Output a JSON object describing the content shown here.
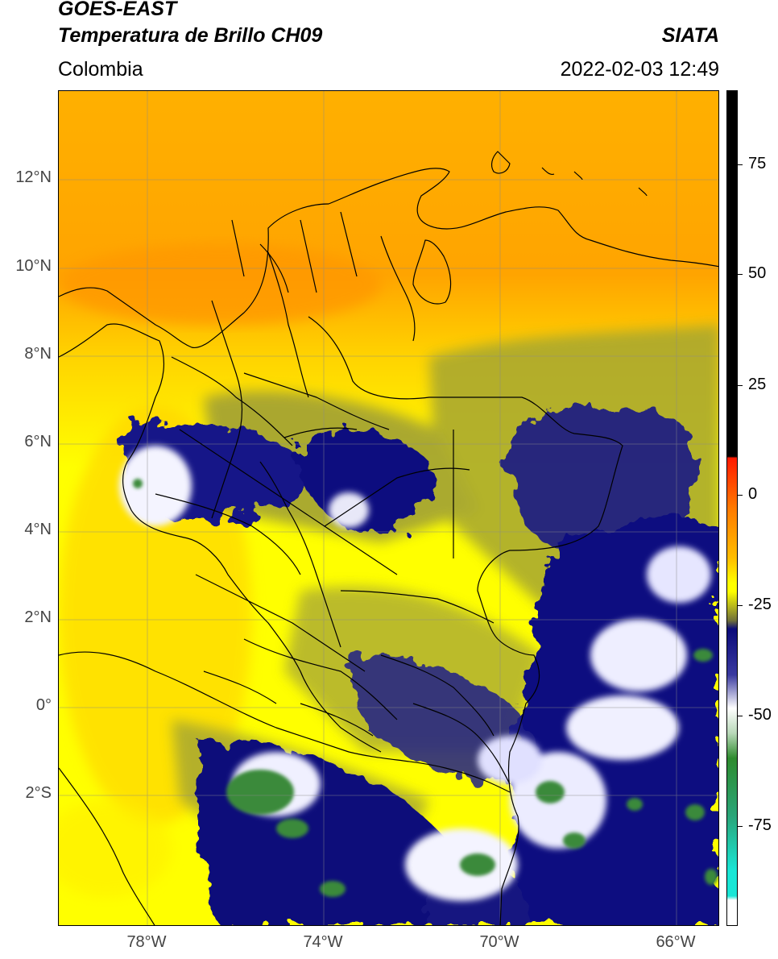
{
  "header": {
    "satellite": "GOES-EAST",
    "product": "Temperatura de Brillo CH09",
    "region": "Colombia",
    "agency": "SIATA",
    "timestamp": "2022-02-03 12:49"
  },
  "map": {
    "lat_labels": [
      "12°N",
      "10°N",
      "8°N",
      "6°N",
      "4°N",
      "2°N",
      "0°",
      "2°S"
    ],
    "lon_labels": [
      "78°W",
      "74°W",
      "70°W",
      "66°W"
    ],
    "extent": {
      "lon_min": -80,
      "lon_max": -65,
      "lat_min": -5,
      "lat_max": 14
    }
  },
  "colorbar": {
    "tick_labels": [
      "75",
      "50",
      "25",
      "0",
      "-25",
      "-50",
      "-75"
    ],
    "colors": {
      "black": "#000000",
      "red": "#e8140a",
      "orange": "#ff9d00",
      "yellow": "#ffff00",
      "olive": "#7f7f33",
      "navy": "#0a0a7a",
      "white": "#ffffff",
      "green": "#2e8b2e",
      "cyan": "#19e6d6"
    }
  }
}
